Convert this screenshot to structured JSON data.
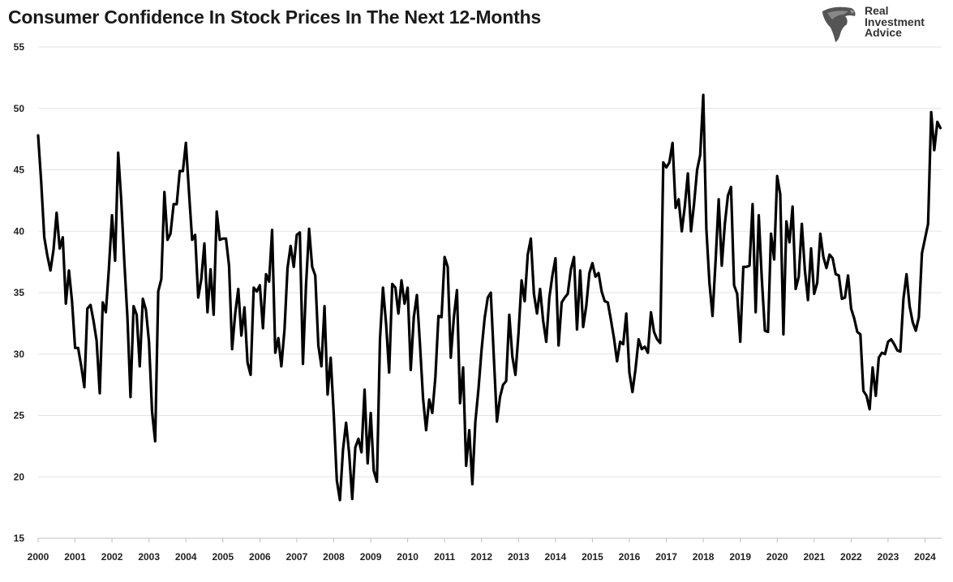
{
  "chart_data": {
    "type": "line",
    "title": "Consumer Confidence In Stock Prices In The Next 12-Months",
    "xlabel": "",
    "ylabel": "",
    "ylim": [
      15,
      55
    ],
    "yticks": [
      "15",
      "20",
      "25",
      "30",
      "35",
      "40",
      "45",
      "50",
      "55"
    ],
    "xlim": [
      2000,
      2024.45
    ],
    "xticks": [
      "2000",
      "2001",
      "2002",
      "2003",
      "2004",
      "2005",
      "2006",
      "2007",
      "2008",
      "2009",
      "2010",
      "2011",
      "2012",
      "2013",
      "2014",
      "2015",
      "2016",
      "2017",
      "2018",
      "2019",
      "2020",
      "2021",
      "2022",
      "2023",
      "2024"
    ],
    "grid": true,
    "line_color": "#000000",
    "series": [
      {
        "x": [
          2000.0,
          2000.083,
          2000.167,
          2000.25,
          2000.333,
          2000.417,
          2000.5,
          2000.583,
          2000.667,
          2000.75,
          2000.833,
          2000.917,
          2001.0,
          2001.083,
          2001.167,
          2001.25,
          2001.333,
          2001.417,
          2001.5,
          2001.583,
          2001.667,
          2001.75,
          2001.833,
          2001.917,
          2002.0,
          2002.083,
          2002.167,
          2002.25,
          2002.333,
          2002.417,
          2002.5,
          2002.583,
          2002.667,
          2002.75,
          2002.833,
          2002.917,
          2003.0,
          2003.083,
          2003.167,
          2003.25,
          2003.333,
          2003.417,
          2003.5,
          2003.583,
          2003.667,
          2003.75,
          2003.833,
          2003.917,
          2004.0,
          2004.083,
          2004.167,
          2004.25,
          2004.333,
          2004.417,
          2004.5,
          2004.583,
          2004.667,
          2004.75,
          2004.833,
          2004.917,
          2005.0,
          2005.083,
          2005.167,
          2005.25,
          2005.333,
          2005.417,
          2005.5,
          2005.583,
          2005.667,
          2005.75,
          2005.833,
          2005.917,
          2006.0,
          2006.083,
          2006.167,
          2006.25,
          2006.333,
          2006.417,
          2006.5,
          2006.583,
          2006.667,
          2006.75,
          2006.833,
          2006.917,
          2007.0,
          2007.083,
          2007.167,
          2007.25,
          2007.333,
          2007.417,
          2007.5,
          2007.583,
          2007.667,
          2007.75,
          2007.833,
          2007.917,
          2008.0,
          2008.083,
          2008.167,
          2008.25,
          2008.333,
          2008.417,
          2008.5,
          2008.583,
          2008.667,
          2008.75,
          2008.833,
          2008.917,
          2009.0,
          2009.083,
          2009.167,
          2009.25,
          2009.333,
          2009.417,
          2009.5,
          2009.583,
          2009.667,
          2009.75,
          2009.833,
          2009.917,
          2010.0,
          2010.083,
          2010.167,
          2010.25,
          2010.333,
          2010.417,
          2010.5,
          2010.583,
          2010.667,
          2010.75,
          2010.833,
          2010.917,
          2011.0,
          2011.083,
          2011.167,
          2011.25,
          2011.333,
          2011.417,
          2011.5,
          2011.583,
          2011.667,
          2011.75,
          2011.833,
          2011.917,
          2012.0,
          2012.083,
          2012.167,
          2012.25,
          2012.333,
          2012.417,
          2012.5,
          2012.583,
          2012.667,
          2012.75,
          2012.833,
          2012.917,
          2013.0,
          2013.083,
          2013.167,
          2013.25,
          2013.333,
          2013.417,
          2013.5,
          2013.583,
          2013.667,
          2013.75,
          2013.833,
          2013.917,
          2014.0,
          2014.083,
          2014.167,
          2014.25,
          2014.333,
          2014.417,
          2014.5,
          2014.583,
          2014.667,
          2014.75,
          2014.833,
          2014.917,
          2015.0,
          2015.083,
          2015.167,
          2015.25,
          2015.333,
          2015.417,
          2015.5,
          2015.583,
          2015.667,
          2015.75,
          2015.833,
          2015.917,
          2016.0,
          2016.083,
          2016.167,
          2016.25,
          2016.333,
          2016.417,
          2016.5,
          2016.583,
          2016.667,
          2016.75,
          2016.833,
          2016.917,
          2017.0,
          2017.083,
          2017.167,
          2017.25,
          2017.333,
          2017.417,
          2017.5,
          2017.583,
          2017.667,
          2017.75,
          2017.833,
          2017.917,
          2018.0,
          2018.083,
          2018.167,
          2018.25,
          2018.333,
          2018.417,
          2018.5,
          2018.583,
          2018.667,
          2018.75,
          2018.833,
          2018.917,
          2019.0,
          2019.083,
          2019.167,
          2019.25,
          2019.333,
          2019.417,
          2019.5,
          2019.583,
          2019.667,
          2019.75,
          2019.833,
          2019.917,
          2020.0,
          2020.083,
          2020.167,
          2020.25,
          2020.333,
          2020.417,
          2020.5,
          2020.583,
          2020.667,
          2020.75,
          2020.833,
          2020.917,
          2021.0,
          2021.083,
          2021.167,
          2021.25,
          2021.333,
          2021.417,
          2021.5,
          2021.583,
          2021.667,
          2021.75,
          2021.833,
          2021.917,
          2022.0,
          2022.083,
          2022.167,
          2022.25,
          2022.333,
          2022.417,
          2022.5,
          2022.583,
          2022.667,
          2022.75,
          2022.833,
          2022.917,
          2023.0,
          2023.083,
          2023.167,
          2023.25,
          2023.333,
          2023.417,
          2023.5,
          2023.583,
          2023.667,
          2023.75,
          2023.833,
          2023.917,
          2024.0,
          2024.083,
          2024.167,
          2024.25,
          2024.333,
          2024.417
        ],
        "y": [
          47.8,
          44.0,
          39.5,
          38.0,
          36.8,
          38.5,
          41.5,
          38.6,
          39.5,
          34.1,
          36.8,
          34.3,
          30.5,
          30.5,
          29.0,
          27.3,
          33.7,
          34.0,
          32.7,
          31.1,
          26.8,
          34.2,
          33.4,
          37.0,
          41.3,
          37.6,
          46.4,
          42.5,
          37.5,
          33.0,
          26.5,
          33.9,
          33.2,
          29.0,
          34.5,
          33.6,
          31.0,
          25.3,
          22.9,
          35.1,
          36.1,
          43.2,
          39.3,
          39.8,
          42.2,
          42.2,
          44.9,
          44.9,
          47.2,
          43.2,
          39.3,
          39.7,
          34.6,
          36.1,
          39.0,
          33.4,
          36.9,
          33.2,
          41.6,
          39.3,
          39.4,
          39.4,
          37.2,
          30.4,
          33.3,
          35.3,
          31.5,
          33.8,
          29.3,
          28.3,
          35.4,
          35.1,
          35.6,
          32.1,
          36.5,
          35.9,
          40.1,
          30.1,
          31.3,
          29.0,
          32.0,
          37.0,
          38.8,
          37.1,
          39.7,
          39.9,
          29.2,
          35.6,
          40.2,
          37.1,
          36.4,
          30.7,
          29.0,
          33.9,
          26.7,
          29.7,
          25.1,
          19.7,
          18.1,
          22.2,
          24.4,
          21.9,
          18.2,
          22.4,
          23.1,
          22.0,
          27.1,
          21.1,
          25.2,
          20.5,
          19.6,
          31.2,
          35.4,
          32.4,
          28.5,
          35.7,
          35.4,
          33.3,
          36.0,
          34.1,
          35.4,
          28.7,
          33.0,
          34.8,
          30.8,
          26.4,
          23.8,
          26.3,
          25.2,
          28.1,
          33.1,
          33.0,
          37.9,
          37.1,
          29.7,
          33.0,
          35.2,
          26.0,
          28.9,
          20.9,
          23.8,
          19.4,
          24.5,
          27.2,
          30.3,
          32.9,
          34.6,
          35.0,
          29.7,
          24.5,
          26.5,
          27.5,
          27.8,
          33.2,
          29.8,
          28.3,
          31.7,
          36.0,
          34.3,
          38.1,
          39.4,
          34.9,
          33.3,
          35.3,
          32.7,
          31.0,
          34.6,
          36.4,
          37.8,
          30.7,
          34.2,
          34.6,
          34.9,
          36.9,
          37.9,
          32.0,
          36.8,
          32.2,
          33.9,
          36.6,
          37.4,
          36.3,
          36.6,
          35.1,
          34.3,
          34.2,
          32.8,
          31.3,
          29.4,
          31.0,
          30.8,
          33.3,
          28.5,
          26.9,
          28.8,
          31.2,
          30.4,
          30.6,
          30.1,
          33.4,
          31.8,
          31.2,
          30.9,
          45.6,
          45.2,
          45.6,
          47.2,
          41.9,
          42.6,
          40.0,
          42.0,
          44.7,
          40.0,
          42.2,
          45.0,
          46.2,
          51.1,
          40.2,
          35.8,
          33.1,
          37.6,
          42.6,
          37.2,
          40.6,
          42.9,
          43.6,
          35.6,
          34.9,
          31.0,
          37.1,
          37.1,
          37.2,
          42.2,
          33.4,
          41.3,
          36.2,
          31.9,
          31.8,
          39.8,
          37.7,
          44.5,
          43.0,
          31.6,
          40.8,
          39.1,
          42.0,
          35.3,
          36.3,
          40.6,
          36.8,
          34.4,
          38.6,
          34.9,
          35.8,
          39.8,
          37.9,
          37.0,
          38.1,
          37.8,
          36.5,
          36.4,
          34.5,
          34.6,
          36.4,
          33.7,
          32.9,
          31.8,
          31.6,
          27.0,
          26.6,
          25.5,
          28.9,
          26.6,
          29.7,
          30.1,
          30.0,
          31.0,
          31.2,
          30.8,
          30.3,
          30.2,
          34.5,
          36.5,
          33.9,
          32.6,
          31.9,
          33.0,
          38.2,
          39.4,
          40.6,
          49.7,
          46.6,
          48.9,
          48.4
        ]
      }
    ]
  },
  "logo": {
    "line1": "Real",
    "line2": "Investment",
    "line3": "Advice"
  }
}
